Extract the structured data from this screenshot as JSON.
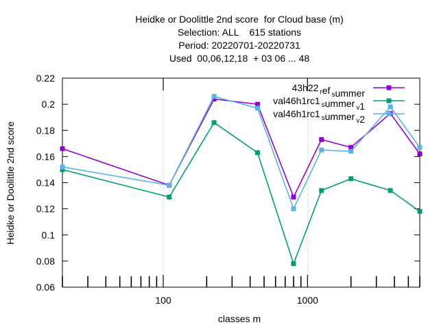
{
  "chart_data": {
    "type": "line",
    "title_lines": [
      "Heidke or Doolittle 2nd score  for Cloud base (m)",
      "Selection: ALL    615 stations",
      "Period: 20220701-20220731",
      "Used  00,06,12,18  + 03 06 ... 48"
    ],
    "xlabel": "classes m",
    "ylabel": "Heidke or Doolittle 2nd score",
    "x_scale": "log",
    "xlim": [
      20,
      6000
    ],
    "ylim": [
      0.06,
      0.22
    ],
    "x_tick_labels": [
      "100",
      "1000"
    ],
    "x_tick_values": [
      100,
      1000
    ],
    "x_minor_tick_values": [
      20,
      30,
      40,
      50,
      60,
      70,
      80,
      90,
      200,
      300,
      400,
      500,
      600,
      700,
      800,
      900,
      2000,
      3000,
      4000,
      5000,
      6000
    ],
    "y_ticks": [
      0.06,
      0.08,
      0.1,
      0.12,
      0.14,
      0.16,
      0.18,
      0.2,
      0.22
    ],
    "y_tick_labels": [
      "0.06",
      "0.08",
      "0.1",
      "0.12",
      "0.14",
      "0.16",
      "0.18",
      "0.2",
      "0.22"
    ],
    "grid": "major-only, dotted",
    "legend_position": "top-right",
    "series": [
      {
        "name_main": "43h22",
        "name_parts": [
          [
            "",
            "r"
          ],
          [
            "ef",
            "s"
          ],
          [
            "ummer",
            ""
          ]
        ],
        "color": "#9400d3",
        "x": [
          20,
          110,
          225,
          450,
          800,
          1250,
          2000,
          3750,
          6000
        ],
        "y": [
          0.166,
          0.138,
          0.204,
          0.2,
          0.129,
          0.173,
          0.167,
          0.193,
          0.162
        ]
      },
      {
        "name_main": "val46h1rc1",
        "name_parts": [
          [
            "",
            "s"
          ],
          [
            "ummer",
            "v"
          ],
          [
            "1",
            ""
          ]
        ],
        "color": "#009e73",
        "x": [
          20,
          110,
          225,
          450,
          800,
          1250,
          2000,
          3750,
          6000
        ],
        "y": [
          0.15,
          0.129,
          0.186,
          0.163,
          0.078,
          0.134,
          0.143,
          0.134,
          0.118
        ]
      },
      {
        "name_main": "val46h1rc1",
        "name_parts": [
          [
            "",
            "s"
          ],
          [
            "ummer",
            "v"
          ],
          [
            "2",
            ""
          ]
        ],
        "color": "#56b4e9",
        "x": [
          20,
          110,
          225,
          450,
          800,
          1250,
          2000,
          3750,
          6000
        ],
        "y": [
          0.152,
          0.138,
          0.206,
          0.197,
          0.12,
          0.165,
          0.164,
          0.198,
          0.167
        ]
      }
    ]
  }
}
